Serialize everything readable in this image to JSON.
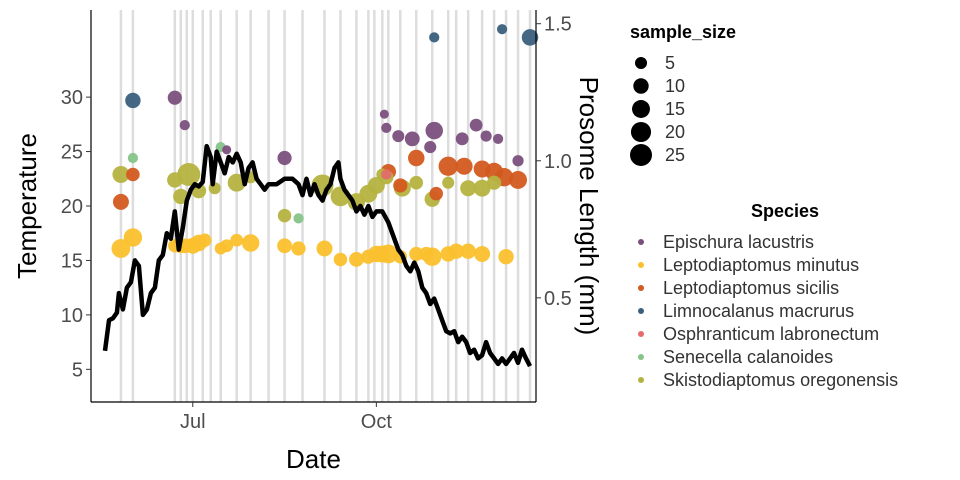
{
  "chart_data": {
    "type": "scatter",
    "x_type": "date",
    "xlabel": "Date",
    "ylabel_left": "Temperature",
    "ylabel_right": "Prosome Length (mm)",
    "xlim": [
      "2021-05-11",
      "2021-12-20"
    ],
    "x_ticks": [
      {
        "value": "2021-07-01",
        "label": "Jul"
      },
      {
        "value": "2021-10-01",
        "label": "Oct"
      }
    ],
    "y_left_range": [
      2.0,
      38.0
    ],
    "y_left_ticks": [
      5,
      10,
      15,
      20,
      25,
      30
    ],
    "y_right_range": [
      0.12,
      1.55
    ],
    "y_right_ticks": [
      0.5,
      1.0,
      1.5
    ],
    "sampling_dates": [
      "2021-05-26",
      "2021-06-01",
      "2021-06-22",
      "2021-06-25",
      "2021-06-28",
      "2021-07-01",
      "2021-07-06",
      "2021-07-10",
      "2021-07-15",
      "2021-07-23",
      "2021-07-30",
      "2021-08-08",
      "2021-08-16",
      "2021-08-25",
      "2021-09-05",
      "2021-09-13",
      "2021-09-21",
      "2021-09-27",
      "2021-09-30",
      "2021-10-04",
      "2021-10-07",
      "2021-10-13",
      "2021-10-21",
      "2021-10-29",
      "2021-11-06",
      "2021-11-10",
      "2021-11-16",
      "2021-11-23",
      "2021-11-29",
      "2021-12-05",
      "2021-12-11",
      "2021-12-17"
    ],
    "temperature": {
      "name": "Temperature",
      "color": "#000000",
      "points": [
        [
          "2021-05-18",
          6.7
        ],
        [
          "2021-05-20",
          9.5
        ],
        [
          "2021-05-22",
          9.7
        ],
        [
          "2021-05-24",
          10.2
        ],
        [
          "2021-05-25",
          12.0
        ],
        [
          "2021-05-27",
          10.5
        ],
        [
          "2021-05-29",
          12.5
        ],
        [
          "2021-05-31",
          13.0
        ],
        [
          "2021-06-02",
          15.0
        ],
        [
          "2021-06-04",
          14.5
        ],
        [
          "2021-06-06",
          10.0
        ],
        [
          "2021-06-08",
          10.5
        ],
        [
          "2021-06-10",
          12.0
        ],
        [
          "2021-06-12",
          12.5
        ],
        [
          "2021-06-14",
          15.0
        ],
        [
          "2021-06-16",
          15.5
        ],
        [
          "2021-06-18",
          17.5
        ],
        [
          "2021-06-20",
          17.0
        ],
        [
          "2021-06-22",
          19.5
        ],
        [
          "2021-06-24",
          16.0
        ],
        [
          "2021-06-26",
          18.0
        ],
        [
          "2021-06-28",
          20.5
        ],
        [
          "2021-06-30",
          21.5
        ],
        [
          "2021-07-02",
          22.0
        ],
        [
          "2021-07-04",
          21.8
        ],
        [
          "2021-07-06",
          22.2
        ],
        [
          "2021-07-08",
          25.5
        ],
        [
          "2021-07-10",
          24.5
        ],
        [
          "2021-07-11",
          22.0
        ],
        [
          "2021-07-13",
          25.0
        ],
        [
          "2021-07-15",
          24.0
        ],
        [
          "2021-07-17",
          23.0
        ],
        [
          "2021-07-19",
          24.5
        ],
        [
          "2021-07-21",
          24.0
        ],
        [
          "2021-07-23",
          24.8
        ],
        [
          "2021-07-25",
          24.0
        ],
        [
          "2021-07-27",
          22.0
        ],
        [
          "2021-07-29",
          23.5
        ],
        [
          "2021-07-31",
          24.0
        ],
        [
          "2021-08-02",
          22.5
        ],
        [
          "2021-08-04",
          22.0
        ],
        [
          "2021-08-06",
          21.5
        ],
        [
          "2021-08-08",
          22.0
        ],
        [
          "2021-08-12",
          22.0
        ],
        [
          "2021-08-16",
          22.5
        ],
        [
          "2021-08-20",
          22.5
        ],
        [
          "2021-08-23",
          22.0
        ],
        [
          "2021-08-25",
          21.0
        ],
        [
          "2021-08-27",
          22.5
        ],
        [
          "2021-08-29",
          21.0
        ],
        [
          "2021-08-31",
          22.0
        ],
        [
          "2021-09-02",
          21.0
        ],
        [
          "2021-09-04",
          20.5
        ],
        [
          "2021-09-06",
          21.5
        ],
        [
          "2021-09-08",
          22.0
        ],
        [
          "2021-09-10",
          23.5
        ],
        [
          "2021-09-12",
          24.0
        ],
        [
          "2021-09-13",
          22.5
        ],
        [
          "2021-09-15",
          21.5
        ],
        [
          "2021-09-17",
          21.0
        ],
        [
          "2021-09-19",
          20.5
        ],
        [
          "2021-09-21",
          19.5
        ],
        [
          "2021-09-23",
          20.0
        ],
        [
          "2021-09-25",
          19.2
        ],
        [
          "2021-09-27",
          20.0
        ],
        [
          "2021-09-29",
          19.0
        ],
        [
          "2021-10-01",
          19.5
        ],
        [
          "2021-10-04",
          19.5
        ],
        [
          "2021-10-07",
          18.5
        ],
        [
          "2021-10-10",
          17.0
        ],
        [
          "2021-10-12",
          16.0
        ],
        [
          "2021-10-14",
          15.5
        ],
        [
          "2021-10-16",
          14.5
        ],
        [
          "2021-10-18",
          14.0
        ],
        [
          "2021-10-20",
          14.8
        ],
        [
          "2021-10-22",
          14.0
        ],
        [
          "2021-10-24",
          12.5
        ],
        [
          "2021-10-26",
          12.0
        ],
        [
          "2021-10-28",
          11.0
        ],
        [
          "2021-10-30",
          11.5
        ],
        [
          "2021-11-01",
          10.5
        ],
        [
          "2021-11-03",
          9.5
        ],
        [
          "2021-11-05",
          8.5
        ],
        [
          "2021-11-07",
          8.3
        ],
        [
          "2021-11-09",
          8.5
        ],
        [
          "2021-11-11",
          7.5
        ],
        [
          "2021-11-13",
          8.0
        ],
        [
          "2021-11-15",
          7.5
        ],
        [
          "2021-11-17",
          6.5
        ],
        [
          "2021-11-19",
          6.8
        ],
        [
          "2021-11-21",
          6.0
        ],
        [
          "2021-11-23",
          6.3
        ],
        [
          "2021-11-25",
          7.5
        ],
        [
          "2021-11-27",
          6.5
        ],
        [
          "2021-11-29",
          6.0
        ],
        [
          "2021-12-01",
          5.5
        ],
        [
          "2021-12-03",
          6.0
        ],
        [
          "2021-12-05",
          5.5
        ],
        [
          "2021-12-07",
          6.0
        ],
        [
          "2021-12-09",
          6.5
        ],
        [
          "2021-12-11",
          5.6
        ],
        [
          "2021-12-13",
          6.8
        ],
        [
          "2021-12-15",
          6.0
        ],
        [
          "2021-12-17",
          5.3
        ]
      ]
    },
    "legend_size": {
      "title": "sample_size",
      "entries": [
        {
          "label": "5",
          "value": 5
        },
        {
          "label": "10",
          "value": 10
        },
        {
          "label": "15",
          "value": 15
        },
        {
          "label": "20",
          "value": 20
        },
        {
          "label": "25",
          "value": 25
        }
      ]
    },
    "legend_species": {
      "title": "Species",
      "entries": [
        {
          "label": "Epischura lacustris",
          "color": "#7B4F7D"
        },
        {
          "label": "Leptodiaptomus minutus",
          "color": "#FBC02D"
        },
        {
          "label": "Leptodiaptomus sicilis",
          "color": "#D35A1F"
        },
        {
          "label": "Limnocalanus macrurus",
          "color": "#3A5F7D"
        },
        {
          "label": "Osphranticum labronectum",
          "color": "#E46C6C"
        },
        {
          "label": "Senecella calanoides",
          "color": "#86C48A"
        },
        {
          "label": "Skistodiaptomus oregonensis",
          "color": "#B5B340"
        }
      ]
    },
    "series": [
      {
        "name": "Epischura lacustris",
        "color": "#7B4F7D",
        "points": [
          [
            "2021-06-22",
            1.23,
            8
          ],
          [
            "2021-06-27",
            1.13,
            3
          ],
          [
            "2021-07-18",
            1.04,
            2
          ],
          [
            "2021-08-16",
            1.01,
            8
          ],
          [
            "2021-10-05",
            1.17,
            2
          ],
          [
            "2021-10-06",
            1.12,
            3
          ],
          [
            "2021-10-12",
            1.09,
            5
          ],
          [
            "2021-10-19",
            1.08,
            9
          ],
          [
            "2021-10-30",
            1.11,
            14
          ],
          [
            "2021-10-28",
            1.05,
            5
          ],
          [
            "2021-11-13",
            1.08,
            6
          ],
          [
            "2021-11-20",
            1.13,
            6
          ],
          [
            "2021-11-25",
            1.09,
            4
          ],
          [
            "2021-12-01",
            1.08,
            3
          ],
          [
            "2021-12-11",
            1.0,
            4
          ]
        ]
      },
      {
        "name": "Leptodiaptomus minutus",
        "color": "#FBC02D",
        "points": [
          [
            "2021-05-26",
            0.68,
            17
          ],
          [
            "2021-06-01",
            0.72,
            16
          ],
          [
            "2021-06-22",
            0.69,
            7
          ],
          [
            "2021-06-25",
            0.69,
            9
          ],
          [
            "2021-06-27",
            0.69,
            9
          ],
          [
            "2021-07-01",
            0.69,
            11
          ],
          [
            "2021-07-04",
            0.7,
            12
          ],
          [
            "2021-07-07",
            0.71,
            7
          ],
          [
            "2021-07-15",
            0.68,
            5
          ],
          [
            "2021-07-18",
            0.69,
            6
          ],
          [
            "2021-07-23",
            0.71,
            6
          ],
          [
            "2021-07-30",
            0.7,
            14
          ],
          [
            "2021-08-16",
            0.69,
            9
          ],
          [
            "2021-08-23",
            0.68,
            8
          ],
          [
            "2021-09-05",
            0.68,
            11
          ],
          [
            "2021-09-13",
            0.64,
            7
          ],
          [
            "2021-09-21",
            0.64,
            9
          ],
          [
            "2021-09-27",
            0.65,
            8
          ],
          [
            "2021-10-01",
            0.66,
            12
          ],
          [
            "2021-10-04",
            0.66,
            13
          ],
          [
            "2021-10-07",
            0.66,
            17
          ],
          [
            "2021-10-13",
            0.65,
            7
          ],
          [
            "2021-10-21",
            0.66,
            8
          ],
          [
            "2021-10-26",
            0.66,
            8
          ],
          [
            "2021-10-29",
            0.65,
            16
          ],
          [
            "2021-11-06",
            0.66,
            10
          ],
          [
            "2021-11-10",
            0.67,
            10
          ],
          [
            "2021-11-16",
            0.67,
            10
          ],
          [
            "2021-11-23",
            0.66,
            11
          ],
          [
            "2021-12-05",
            0.65,
            10
          ]
        ]
      },
      {
        "name": "Leptodiaptomus sicilis",
        "color": "#D35A1F",
        "points": [
          [
            "2021-05-26",
            0.85,
            11
          ],
          [
            "2021-06-01",
            0.95,
            7
          ],
          [
            "2021-10-07",
            0.96,
            10
          ],
          [
            "2021-10-13",
            0.91,
            8
          ],
          [
            "2021-10-21",
            1.01,
            12
          ],
          [
            "2021-10-31",
            0.88,
            7
          ],
          [
            "2021-11-06",
            0.98,
            18
          ],
          [
            "2021-11-14",
            0.98,
            13
          ],
          [
            "2021-11-23",
            0.97,
            13
          ],
          [
            "2021-11-29",
            0.96,
            15
          ],
          [
            "2021-12-04",
            0.94,
            16
          ],
          [
            "2021-12-11",
            0.93,
            15
          ]
        ]
      },
      {
        "name": "Limnocalanus macrurus",
        "color": "#3A5F7D",
        "points": [
          [
            "2021-06-01",
            1.22,
            10
          ],
          [
            "2021-10-30",
            1.45,
            3
          ],
          [
            "2021-12-03",
            1.48,
            3
          ],
          [
            "2021-12-17",
            1.45,
            12
          ]
        ]
      },
      {
        "name": "Osphranticum labronectum",
        "color": "#E46C6C",
        "points": [
          [
            "2021-10-06",
            0.95,
            3
          ]
        ]
      },
      {
        "name": "Senecella calanoides",
        "color": "#86C48A",
        "points": [
          [
            "2021-06-01",
            1.01,
            3
          ],
          [
            "2021-07-15",
            1.05,
            3
          ],
          [
            "2021-08-23",
            0.79,
            3
          ]
        ]
      },
      {
        "name": "Skistodiaptomus oregonensis",
        "color": "#B5B340",
        "points": [
          [
            "2021-05-26",
            0.95,
            13
          ],
          [
            "2021-06-22",
            0.93,
            10
          ],
          [
            "2021-06-25",
            0.87,
            10
          ],
          [
            "2021-06-29",
            0.95,
            28
          ],
          [
            "2021-07-04",
            0.89,
            9
          ],
          [
            "2021-07-12",
            0.9,
            5
          ],
          [
            "2021-07-23",
            0.92,
            15
          ],
          [
            "2021-07-30",
            0.94,
            5
          ],
          [
            "2021-08-16",
            0.8,
            7
          ],
          [
            "2021-09-04",
            0.91,
            25
          ],
          [
            "2021-09-13",
            0.87,
            19
          ],
          [
            "2021-09-21",
            0.85,
            14
          ],
          [
            "2021-09-27",
            0.88,
            15
          ],
          [
            "2021-10-01",
            0.91,
            13
          ],
          [
            "2021-10-04",
            0.95,
            5
          ],
          [
            "2021-10-06",
            0.94,
            8
          ],
          [
            "2021-10-14",
            0.9,
            13
          ],
          [
            "2021-10-21",
            0.92,
            7
          ],
          [
            "2021-10-29",
            0.86,
            10
          ],
          [
            "2021-11-06",
            0.92,
            5
          ],
          [
            "2021-11-16",
            0.9,
            11
          ],
          [
            "2021-11-23",
            0.9,
            13
          ],
          [
            "2021-11-29",
            0.92,
            8
          ]
        ]
      }
    ]
  }
}
